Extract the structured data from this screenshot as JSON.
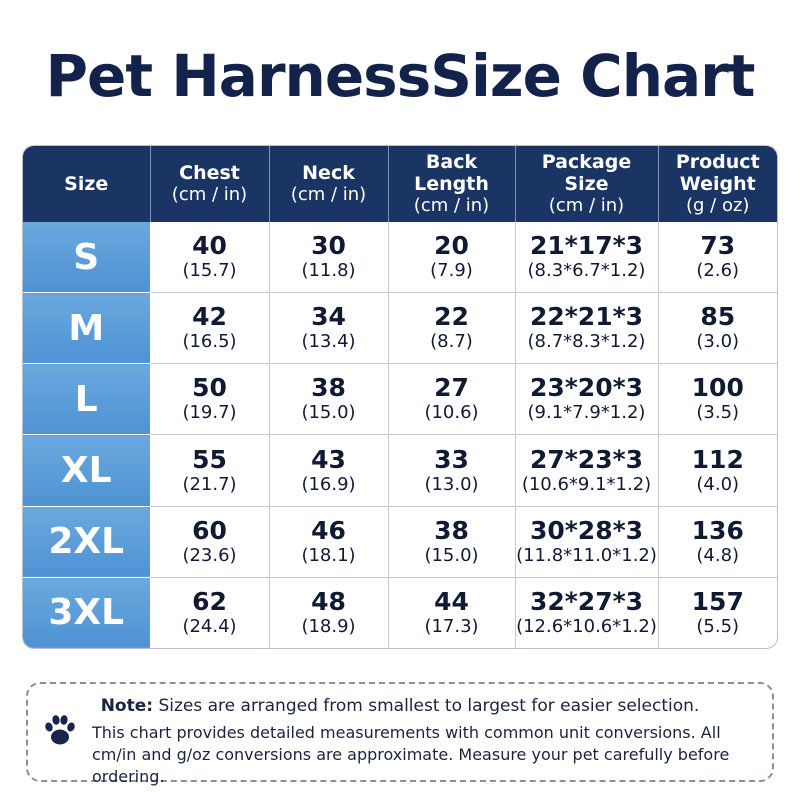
{
  "title": "Pet HarnessSize Chart",
  "table": {
    "headers": [
      {
        "lines": [
          "Size"
        ],
        "unit": ""
      },
      {
        "lines": [
          "Chest"
        ],
        "unit": "(cm / in)"
      },
      {
        "lines": [
          "Neck"
        ],
        "unit": "(cm / in)"
      },
      {
        "lines": [
          "Back",
          "Length"
        ],
        "unit": "(cm / in)"
      },
      {
        "lines": [
          "Package",
          "Size"
        ],
        "unit": "(cm / in)"
      },
      {
        "lines": [
          "Product",
          "Weight"
        ],
        "unit": "(g / oz)"
      }
    ],
    "rows": [
      {
        "size": "S",
        "chest": [
          "40",
          "(15.7)"
        ],
        "neck": [
          "30",
          "(11.8)"
        ],
        "back": [
          "20",
          "(7.9)"
        ],
        "package": [
          "21*17*3",
          "(8.3*6.7*1.2)"
        ],
        "weight": [
          "73",
          "(2.6)"
        ]
      },
      {
        "size": "M",
        "chest": [
          "42",
          "(16.5)"
        ],
        "neck": [
          "34",
          "(13.4)"
        ],
        "back": [
          "22",
          "(8.7)"
        ],
        "package": [
          "22*21*3",
          "(8.7*8.3*1.2)"
        ],
        "weight": [
          "85",
          "(3.0)"
        ]
      },
      {
        "size": "L",
        "chest": [
          "50",
          "(19.7)"
        ],
        "neck": [
          "38",
          "(15.0)"
        ],
        "back": [
          "27",
          "(10.6)"
        ],
        "package": [
          "23*20*3",
          "(9.1*7.9*1.2)"
        ],
        "weight": [
          "100",
          "(3.5)"
        ]
      },
      {
        "size": "XL",
        "chest": [
          "55",
          "(21.7)"
        ],
        "neck": [
          "43",
          "(16.9)"
        ],
        "back": [
          "33",
          "(13.0)"
        ],
        "package": [
          "27*23*3",
          "(10.6*9.1*1.2)"
        ],
        "weight": [
          "112",
          "(4.0)"
        ]
      },
      {
        "size": "2XL",
        "chest": [
          "60",
          "(23.6)"
        ],
        "neck": [
          "46",
          "(18.1)"
        ],
        "back": [
          "38",
          "(15.0)"
        ],
        "package": [
          "30*28*3",
          "(11.8*11.0*1.2)"
        ],
        "weight": [
          "136",
          "(4.8)"
        ]
      },
      {
        "size": "3XL",
        "chest": [
          "62",
          "(24.4)"
        ],
        "neck": [
          "48",
          "(18.9)"
        ],
        "back": [
          "44",
          "(17.3)"
        ],
        "package": [
          "32*27*3",
          "(12.6*10.6*1.2)"
        ],
        "weight": [
          "157",
          "(5.5)"
        ]
      }
    ]
  },
  "note": {
    "label": "Note:",
    "line1": "Sizes are arranged from smallest to largest for easier selection.",
    "body": "This chart provides detailed measurements with common unit conversions. All cm/in and g/oz conversions are approximate. Measure your pet carefully before ordering.",
    "icon": "paw-icon"
  },
  "colors": {
    "header_bg": "#1a3563",
    "size_col_bg": "#5a9dd8",
    "title": "#13224a"
  }
}
